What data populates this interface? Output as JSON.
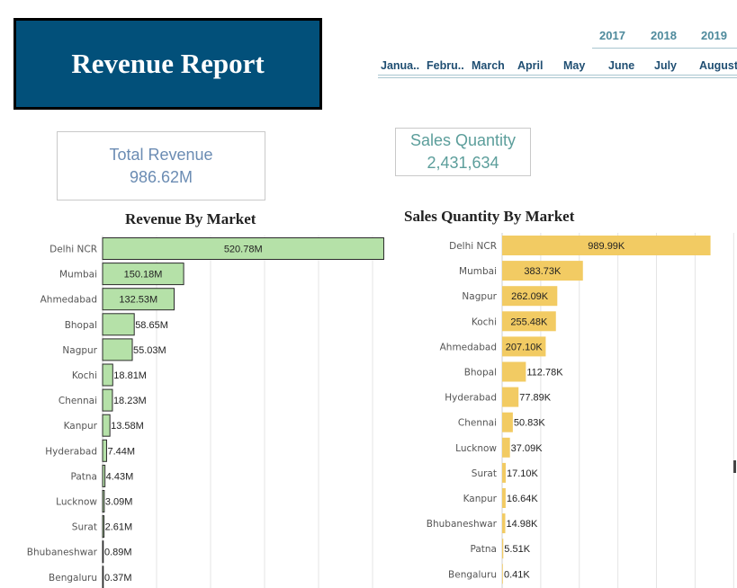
{
  "header": {
    "title": "Revenue Report"
  },
  "date_filter": {
    "years": [
      "2017",
      "2018",
      "2019"
    ],
    "months": [
      "Janua..",
      "Febru..",
      "March",
      "April",
      "May",
      "June",
      "July",
      "August"
    ]
  },
  "kpis": {
    "total_revenue": {
      "label": "Total Revenue",
      "value": "986.62M"
    },
    "sales_quantity": {
      "label": "Sales Quantity",
      "value": "2,431,634"
    }
  },
  "colors": {
    "title_bg": "#02507a",
    "revenue_bar": "#b5e1a8",
    "revenue_bar_border": "#2a2a2a",
    "quantity_bar": "#f2cb63",
    "grid": "#e4e4e4"
  },
  "chart_data": [
    {
      "type": "bar",
      "orientation": "horizontal",
      "title": "Revenue By Market",
      "categories": [
        "Delhi NCR",
        "Mumbai",
        "Ahmedabad",
        "Bhopal",
        "Nagpur",
        "Kochi",
        "Chennai",
        "Kanpur",
        "Hyderabad",
        "Patna",
        "Lucknow",
        "Surat",
        "Bhubaneshwar",
        "Bengaluru"
      ],
      "values": [
        520.78,
        150.18,
        132.53,
        58.65,
        55.03,
        18.81,
        18.23,
        13.58,
        7.44,
        4.43,
        3.09,
        2.61,
        0.89,
        0.37
      ],
      "labels": [
        "520.78M",
        "150.18M",
        "132.53M",
        "58.65M",
        "55.03M",
        "18.81M",
        "18.23M",
        "13.58M",
        "7.44M",
        "4.43M",
        "3.09M",
        "2.61M",
        "0.89M",
        "0.37M"
      ],
      "unit": "M",
      "xlim": [
        0,
        600
      ],
      "grid": true
    },
    {
      "type": "bar",
      "orientation": "horizontal",
      "title": "Sales Quantity By Market",
      "categories": [
        "Delhi NCR",
        "Mumbai",
        "Nagpur",
        "Kochi",
        "Ahmedabad",
        "Bhopal",
        "Hyderabad",
        "Chennai",
        "Lucknow",
        "Surat",
        "Kanpur",
        "Bhubaneshwar",
        "Patna",
        "Bengaluru"
      ],
      "values": [
        989.99,
        383.73,
        262.09,
        255.48,
        207.1,
        112.78,
        77.89,
        50.83,
        37.09,
        17.1,
        16.64,
        14.98,
        5.51,
        0.41
      ],
      "labels": [
        "989.99K",
        "383.73K",
        "262.09K",
        "255.48K",
        "207.10K",
        "112.78K",
        "77.89K",
        "50.83K",
        "37.09K",
        "17.10K",
        "16.64K",
        "14.98K",
        "5.51K",
        "0.41K"
      ],
      "unit": "K",
      "xlim": [
        0,
        1100
      ],
      "grid": true
    }
  ]
}
